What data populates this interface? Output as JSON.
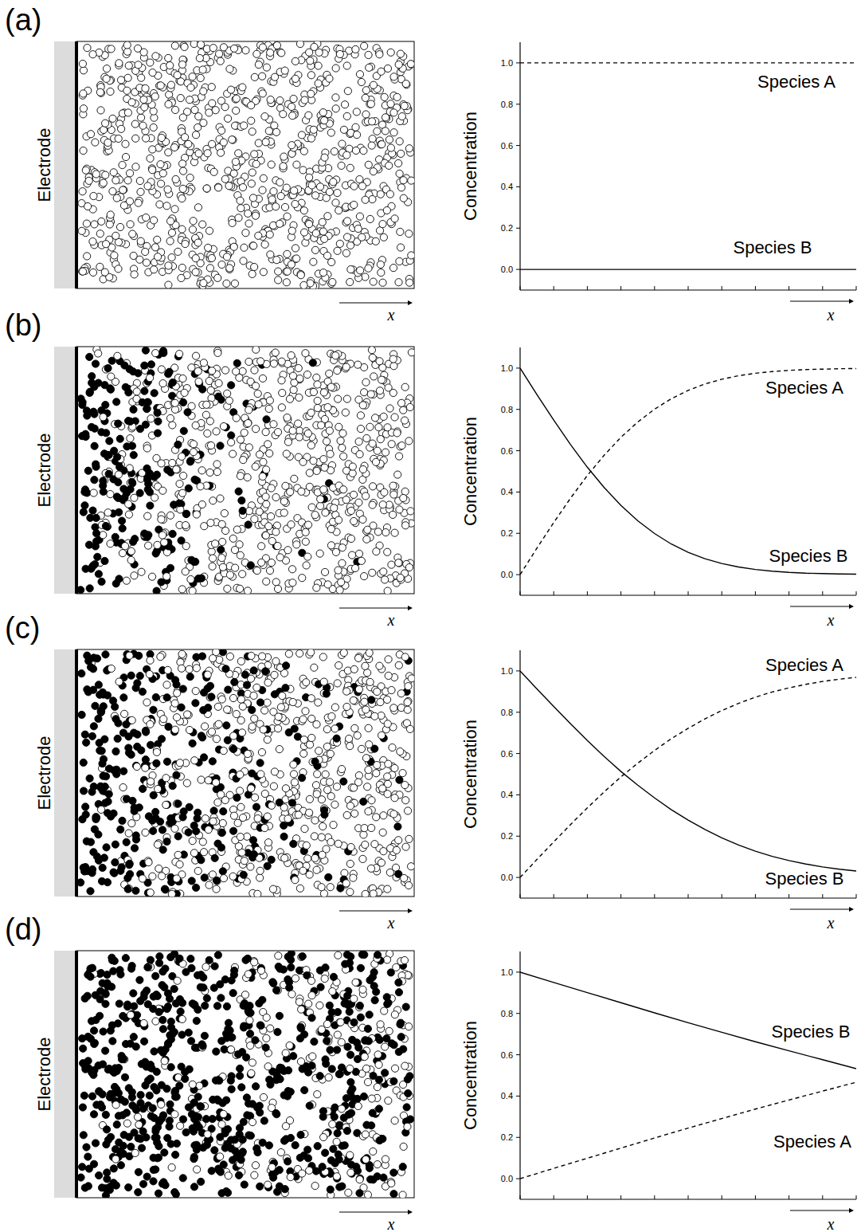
{
  "chart_data": [
    {
      "type": "line",
      "title": "(a)",
      "annotations": [
        "Electrode",
        "x"
      ],
      "xlabel": "x",
      "ylabel": "Concentration",
      "x": [
        0,
        0.1,
        0.2,
        0.3,
        0.4,
        0.5,
        0.6,
        0.7,
        0.8,
        0.9,
        1
      ],
      "series": [
        {
          "name": "Species A",
          "color": "#000000",
          "line_style": "dashed",
          "values": [
            1,
            1,
            1,
            1,
            1,
            1,
            1,
            1,
            1,
            1,
            1
          ]
        },
        {
          "name": "Species B",
          "color": "#000000",
          "line_style": "solid",
          "values": [
            0,
            0,
            0,
            0,
            0,
            0,
            0,
            0,
            0,
            0,
            0
          ]
        }
      ],
      "xlim": [
        0,
        1
      ],
      "ylim": [
        -0.1,
        1.1
      ],
      "xticks": [
        0,
        0.1,
        0.2,
        0.3,
        0.4,
        0.5,
        0.6,
        0.7,
        0.8,
        0.9,
        1
      ],
      "yticks": [
        {
          "value": 0,
          "label": "0.0"
        },
        {
          "value": 0.2,
          "label": "0.2"
        },
        {
          "value": 0.4,
          "label": "0.4"
        },
        {
          "value": 0.6,
          "label": "0.6"
        },
        {
          "value": 0.8,
          "label": "0.8"
        },
        {
          "value": 1,
          "label": "1.0"
        }
      ],
      "tick_labels": "y"
    },
    {
      "type": "line",
      "title": "(b)",
      "annotations": [
        "Electrode",
        "x"
      ],
      "xlabel": "x",
      "ylabel": "Concentration",
      "x": [
        0,
        0.05,
        0.1,
        0.15,
        0.2,
        0.25,
        0.3,
        0.35,
        0.4,
        0.45,
        0.5,
        0.55,
        0.6,
        0.65,
        0.7,
        0.75,
        0.8,
        0.85,
        0.9,
        0.95,
        1
      ],
      "series": [
        {
          "name": "Species A",
          "color": "#000000",
          "line_style": "dashed",
          "values": [
            0,
            0.128,
            0.252,
            0.37,
            0.48,
            0.578,
            0.665,
            0.739,
            0.801,
            0.852,
            0.892,
            0.923,
            0.946,
            0.963,
            0.975,
            0.983,
            0.989,
            0.993,
            0.995,
            0.997,
            0.998
          ]
        },
        {
          "name": "Species B",
          "color": "#000000",
          "line_style": "solid",
          "values": [
            1,
            0.872,
            0.748,
            0.63,
            0.52,
            0.422,
            0.335,
            0.261,
            0.199,
            0.148,
            0.108,
            0.077,
            0.054,
            0.037,
            0.025,
            0.017,
            0.011,
            0.007,
            0.005,
            0.003,
            0.002
          ]
        }
      ],
      "xlim": [
        0,
        1
      ],
      "ylim": [
        -0.1,
        1.1
      ],
      "xticks": [
        0,
        0.1,
        0.2,
        0.3,
        0.4,
        0.5,
        0.6,
        0.7,
        0.8,
        0.9,
        1
      ],
      "yticks": [
        {
          "value": 0,
          "label": "0.0"
        },
        {
          "value": 0.2,
          "label": "0.2"
        },
        {
          "value": 0.4,
          "label": "0.4"
        },
        {
          "value": 0.6,
          "label": "0.6"
        },
        {
          "value": 0.8,
          "label": "0.8"
        },
        {
          "value": 1,
          "label": "1.0"
        }
      ],
      "tick_labels": "y"
    },
    {
      "type": "line",
      "title": "(c)",
      "annotations": [
        "Electrode",
        "x"
      ],
      "xlabel": "x",
      "ylabel": "Concentration",
      "x": [
        0,
        0.05,
        0.1,
        0.15,
        0.2,
        0.25,
        0.3,
        0.35,
        0.4,
        0.45,
        0.5,
        0.55,
        0.6,
        0.65,
        0.7,
        0.75,
        0.8,
        0.85,
        0.9,
        0.95,
        1
      ],
      "series": [
        {
          "name": "Species A",
          "color": "#000000",
          "line_style": "dashed",
          "values": [
            0,
            0.087,
            0.172,
            0.256,
            0.337,
            0.414,
            0.487,
            0.553,
            0.615,
            0.672,
            0.722,
            0.768,
            0.808,
            0.843,
            0.873,
            0.898,
            0.918,
            0.935,
            0.949,
            0.96,
            0.969
          ]
        },
        {
          "name": "Species B",
          "color": "#000000",
          "line_style": "solid",
          "values": [
            1,
            0.913,
            0.828,
            0.744,
            0.663,
            0.586,
            0.513,
            0.447,
            0.385,
            0.328,
            0.278,
            0.232,
            0.192,
            0.157,
            0.127,
            0.102,
            0.082,
            0.065,
            0.051,
            0.04,
            0.031
          ]
        }
      ],
      "xlim": [
        0,
        1
      ],
      "ylim": [
        -0.1,
        1.1
      ],
      "xticks": [
        0,
        0.1,
        0.2,
        0.3,
        0.4,
        0.5,
        0.6,
        0.7,
        0.8,
        0.9,
        1
      ],
      "yticks": [
        {
          "value": 0,
          "label": "0.0"
        },
        {
          "value": 0.2,
          "label": "0.2"
        },
        {
          "value": 0.4,
          "label": "0.4"
        },
        {
          "value": 0.6,
          "label": "0.6"
        },
        {
          "value": 0.8,
          "label": "0.8"
        },
        {
          "value": 1,
          "label": "1.0"
        }
      ],
      "tick_labels": "y"
    },
    {
      "type": "line",
      "title": "(d)",
      "annotations": [
        "Electrode",
        "x"
      ],
      "xlabel": "x",
      "ylabel": "Concentration",
      "x": [
        0,
        0.1,
        0.2,
        0.3,
        0.4,
        0.5,
        0.6,
        0.7,
        0.8,
        0.9,
        1
      ],
      "series": [
        {
          "name": "Species B",
          "color": "#000000",
          "line_style": "solid",
          "values": [
            1,
            0.95,
            0.901,
            0.852,
            0.803,
            0.755,
            0.709,
            0.663,
            0.619,
            0.576,
            0.533
          ]
        },
        {
          "name": "Species A",
          "color": "#000000",
          "line_style": "dashed",
          "values": [
            0,
            0.05,
            0.099,
            0.148,
            0.197,
            0.245,
            0.291,
            0.337,
            0.381,
            0.424,
            0.467
          ]
        }
      ],
      "xlim": [
        0,
        1
      ],
      "ylim": [
        -0.1,
        1.1
      ],
      "xticks": [
        0,
        0.1,
        0.2,
        0.3,
        0.4,
        0.5,
        0.6,
        0.7,
        0.8,
        0.9,
        1
      ],
      "yticks": [
        {
          "value": 0,
          "label": "0.0"
        },
        {
          "value": 0.2,
          "label": "0.2"
        },
        {
          "value": 0.4,
          "label": "0.4"
        },
        {
          "value": 0.6,
          "label": "0.6"
        },
        {
          "value": 0.8,
          "label": "0.8"
        },
        {
          "value": 1,
          "label": "1.0"
        }
      ],
      "tick_labels": "y"
    }
  ]
}
